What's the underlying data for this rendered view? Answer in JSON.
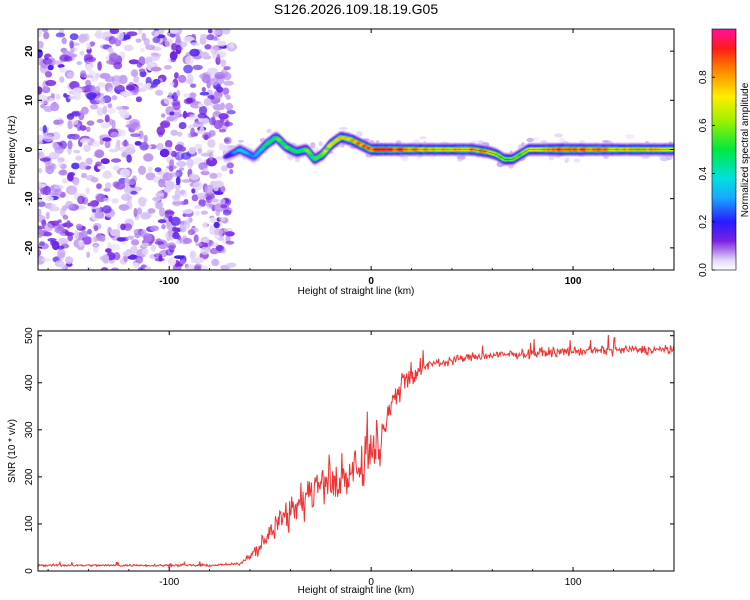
{
  "title": "S126.2026.109.18.19.G05",
  "chart_data": [
    {
      "type": "heatmap",
      "name": "spectrogram",
      "xlabel": "Height of straight line (km)",
      "ylabel": "Frequency (Hz)",
      "xlim": [
        -165,
        150
      ],
      "ylim": [
        -24.5,
        24.5
      ],
      "xticks": [
        -100,
        0,
        100
      ],
      "yticks": [
        -20,
        -10,
        0,
        10,
        20
      ],
      "colorbar": {
        "label": "Normalized spectral amplitude",
        "range": [
          0,
          1
        ],
        "ticks": [
          "0.0",
          "0.2",
          "0.4",
          "0.6",
          "0.8"
        ]
      },
      "noise_region_x": [
        -165,
        -72
      ],
      "signal_ridge": {
        "x": [
          -72,
          -65,
          -58,
          -52,
          -47,
          -42,
          -37,
          -32,
          -28,
          -24,
          -20,
          -15,
          -10,
          -5,
          0,
          10,
          20,
          30,
          40,
          50,
          58,
          62,
          66,
          70,
          74,
          78,
          85,
          95,
          110,
          130,
          150
        ],
        "freq_hz": [
          -1.5,
          0,
          -1.5,
          1,
          2.5,
          0.5,
          -0.5,
          0,
          -2,
          -1,
          1,
          2.5,
          2,
          1,
          0,
          0,
          0,
          0,
          0,
          0,
          -0.5,
          -1,
          -2,
          -2,
          -1,
          0,
          0,
          0,
          0,
          0,
          0
        ],
        "amplitude": [
          0.15,
          0.35,
          0.3,
          0.45,
          0.5,
          0.55,
          0.5,
          0.55,
          0.45,
          0.6,
          0.65,
          0.7,
          0.75,
          0.8,
          0.85,
          0.9,
          0.8,
          0.7,
          0.75,
          0.8,
          0.75,
          0.65,
          0.6,
          0.55,
          0.55,
          0.65,
          0.7,
          0.9,
          0.8,
          0.7,
          0.75
        ]
      }
    },
    {
      "type": "line",
      "name": "snr",
      "xlabel": "Height of straight line (km)",
      "ylabel": "SNR (10 * v/v)",
      "xlim": [
        -165,
        150
      ],
      "ylim": [
        0,
        510
      ],
      "xticks": [
        -100,
        0,
        100
      ],
      "yticks": [
        0,
        100,
        200,
        300,
        400,
        500
      ],
      "color": "#ee3333",
      "x": [
        -165,
        -140,
        -110,
        -80,
        -65,
        -55,
        -48,
        -40,
        -30,
        -20,
        -10,
        -4,
        0,
        5,
        10,
        15,
        20,
        25,
        30,
        40,
        50,
        70,
        90,
        110,
        130,
        150
      ],
      "snr": [
        12,
        12,
        12,
        12,
        15,
        50,
        95,
        130,
        165,
        195,
        210,
        230,
        250,
        290,
        350,
        400,
        420,
        430,
        440,
        448,
        455,
        460,
        465,
        468,
        470,
        470
      ]
    }
  ]
}
